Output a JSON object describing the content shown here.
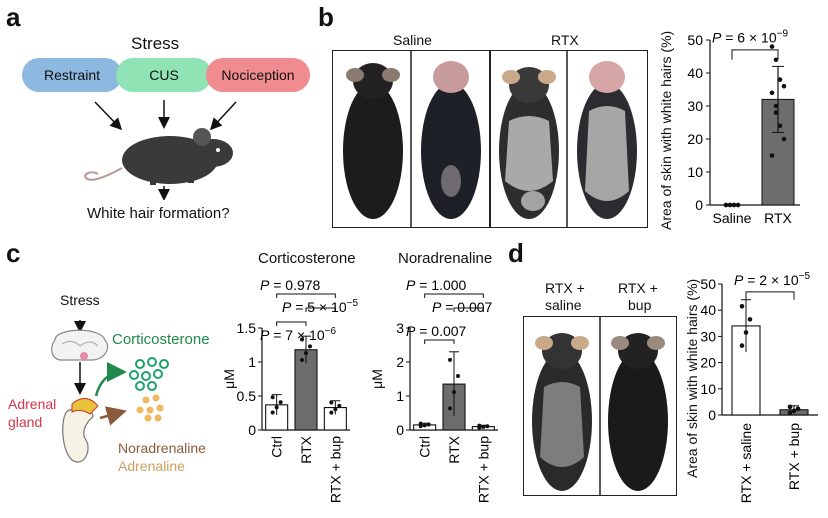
{
  "panel_a": {
    "label": "a",
    "title": "Stress",
    "pills": [
      {
        "text": "Restraint",
        "color": "#8db8df"
      },
      {
        "text": "CUS",
        "color": "#8fe3b4"
      },
      {
        "text": "Nociception",
        "color": "#f08b8f"
      }
    ],
    "outcome": "White hair formation?"
  },
  "panel_b": {
    "label": "b",
    "photo_labels": [
      "Saline",
      "RTX"
    ],
    "chart": {
      "type": "bar",
      "ylabel": "Area of skin with white hairs (%)",
      "categories": [
        "Saline",
        "RTX"
      ],
      "values": [
        0,
        32
      ],
      "errors": [
        0,
        10
      ],
      "points": [
        [
          0,
          0,
          0,
          0,
          0,
          0,
          0,
          0
        ],
        [
          48,
          44,
          38,
          36,
          34,
          28,
          24,
          20,
          15,
          30
        ]
      ],
      "ylim": [
        0,
        50
      ],
      "yticks": [
        "0",
        "10",
        "20",
        "30",
        "40",
        "50"
      ],
      "pvalue": "P = 6 × 10",
      "pexp": "−9"
    }
  },
  "panel_c": {
    "label": "c",
    "stress": "Stress",
    "corticosterone_label": "Corticosterone",
    "adrenal_label_1": "Adrenal",
    "adrenal_label_2": "gland",
    "noradrenaline_label": "Noradrenaline",
    "adrenaline_label": "Adrenaline",
    "chart_cort": {
      "type": "bar",
      "title": "Corticosterone",
      "ylabel": "μM",
      "categories": [
        "Ctrl",
        "RTX",
        "RTX + bup"
      ],
      "values": [
        0.37,
        1.18,
        0.33
      ],
      "errors": [
        0.15,
        0.2,
        0.1
      ],
      "ylim": [
        0,
        1.5
      ],
      "yticks": [
        "0",
        "0.5",
        "1",
        "1.5"
      ],
      "p_top": "P = 0.978",
      "p_mid": "P = 5 × 10",
      "p_mid_exp": "−5",
      "p_low": "P = 7 × 10",
      "p_low_exp": "−6"
    },
    "chart_nor": {
      "type": "bar",
      "title": "Noradrenaline",
      "ylabel": "μM",
      "categories": [
        "Ctrl",
        "RTX",
        "RTX + bup"
      ],
      "values": [
        0.15,
        1.35,
        0.1
      ],
      "errors": [
        0.05,
        0.95,
        0.04
      ],
      "ylim": [
        0,
        3
      ],
      "yticks": [
        "0",
        "1",
        "2",
        "3"
      ],
      "p_top": "P = 1.000",
      "p_mid": "P = 0.007",
      "p_low": "P = 0.007"
    }
  },
  "panel_d": {
    "label": "d",
    "photo_labels": [
      "RTX +\nsaline",
      "RTX +\nbup"
    ],
    "photo_label_1a": "RTX +",
    "photo_label_1b": "saline",
    "photo_label_2a": "RTX +",
    "photo_label_2b": "bup",
    "chart": {
      "type": "bar",
      "ylabel": "Area of skin with white hairs (%)",
      "categories": [
        "RTX + saline",
        "RTX + bup"
      ],
      "values": [
        34,
        2
      ],
      "errors": [
        10,
        1.5
      ],
      "ylim": [
        0,
        50
      ],
      "yticks": [
        "0",
        "10",
        "20",
        "30",
        "40",
        "50"
      ],
      "pvalue": "P = 2 × 10",
      "pexp": "−5"
    }
  }
}
